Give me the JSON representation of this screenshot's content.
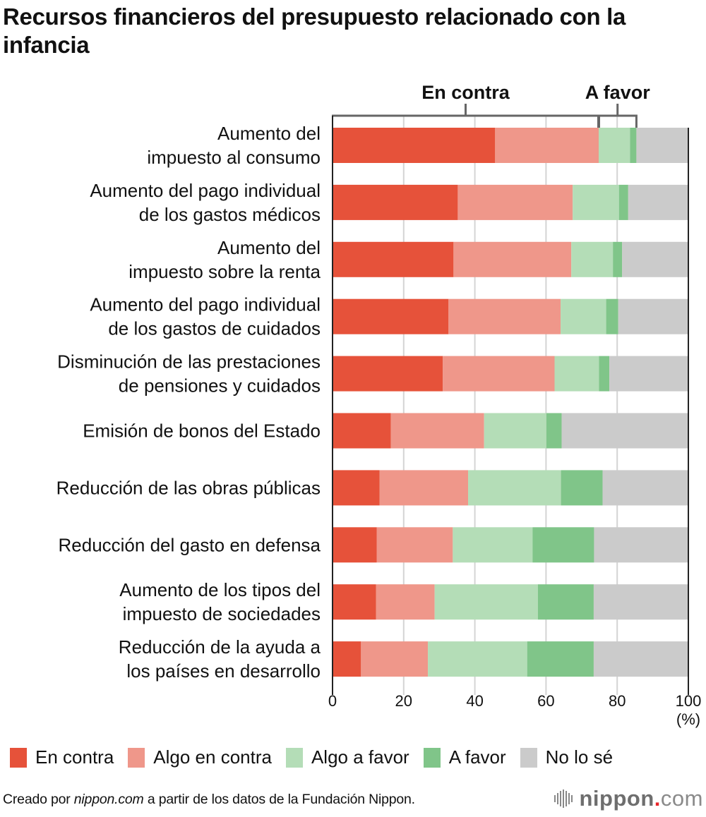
{
  "chart_data": {
    "type": "bar",
    "orientation": "horizontal-stacked",
    "title": "Recursos financieros del presupuesto relacionado con la infancia",
    "xlabel": "(%)",
    "ylabel": "",
    "xlim": [
      0,
      100
    ],
    "xticks": [
      0,
      20,
      40,
      60,
      80,
      100
    ],
    "xtick_labels": [
      "0",
      "20",
      "40",
      "60",
      "80",
      "100"
    ],
    "grid": true,
    "legend_position": "bottom",
    "categories": [
      [
        "Aumento del",
        "impuesto al consumo"
      ],
      [
        "Aumento del pago individual",
        "de los gastos médicos"
      ],
      [
        "Aumento del",
        "impuesto sobre la renta"
      ],
      [
        "Aumento del pago individual",
        "de los gastos de cuidados"
      ],
      [
        "Disminución de las prestaciones",
        "de pensiones y cuidados"
      ],
      [
        "Emisión de bonos del Estado"
      ],
      [
        "Reducción de las obras públicas"
      ],
      [
        "Reducción del gasto en defensa"
      ],
      [
        "Aumento de los tipos del",
        "impuesto de sociedades"
      ],
      [
        "Reducción de la ayuda a",
        "los países en desarrollo"
      ]
    ],
    "series": [
      {
        "name": "En contra",
        "color": "#e6523a",
        "values": [
          45.7,
          35.2,
          34.0,
          32.6,
          31.0,
          16.4,
          13.2,
          12.4,
          12.2,
          8.0
        ]
      },
      {
        "name": "Algo en contra",
        "color": "#ef978a",
        "values": [
          29.1,
          32.3,
          33.1,
          31.5,
          31.4,
          26.2,
          24.9,
          21.4,
          16.5,
          18.8
        ]
      },
      {
        "name": "Algo a favor",
        "color": "#b4ddb7",
        "values": [
          8.8,
          13.0,
          11.7,
          12.8,
          12.5,
          17.5,
          26.1,
          22.4,
          29.0,
          27.9
        ]
      },
      {
        "name": "A favor",
        "color": "#80c589",
        "values": [
          1.8,
          2.6,
          2.6,
          3.4,
          2.9,
          4.3,
          11.7,
          17.3,
          15.7,
          18.7
        ]
      },
      {
        "name": "No lo sé",
        "color": "#cbcbcb",
        "values": [
          14.6,
          16.9,
          18.6,
          19.7,
          22.2,
          35.6,
          24.1,
          26.5,
          26.6,
          26.6
        ]
      }
    ],
    "annotations": [
      {
        "text": "En contra",
        "spans_percent": [
          0,
          74.8
        ]
      },
      {
        "text": "A favor",
        "spans_percent": [
          74.8,
          85.4
        ]
      }
    ]
  },
  "footer": {
    "prefix": "Creado por ",
    "source_italic": "nippon.com",
    "suffix": " a partir de los datos de la Fundación Nippon."
  },
  "logo": {
    "name": "nippon",
    "dot": ".",
    "tld": "com"
  }
}
